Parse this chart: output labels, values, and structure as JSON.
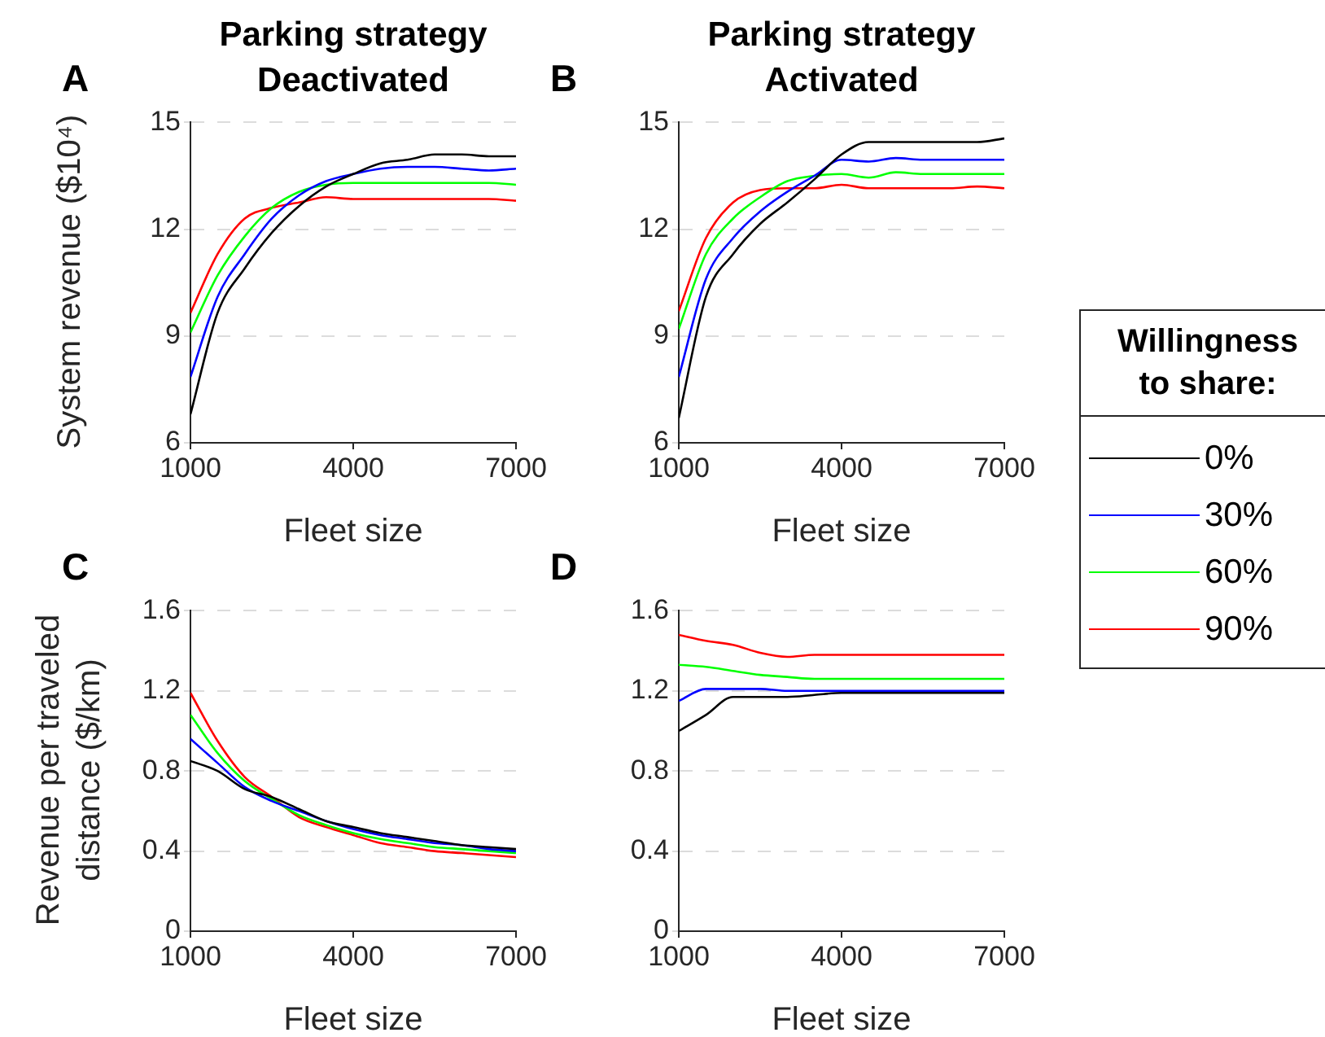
{
  "chart_data": [
    {
      "type": "line",
      "title": "Parking strategy",
      "subtitle": "Deactivated",
      "annotations": [
        "A"
      ],
      "ylabel": "System revenue ($10⁴)",
      "xlabel": "Fleet size",
      "x": [
        1000,
        1500,
        2000,
        2500,
        3000,
        3500,
        4000,
        4500,
        5000,
        5500,
        6000,
        6500,
        7000
      ],
      "xlim": [
        1000,
        7000
      ],
      "xticks": [
        1000,
        4000,
        7000
      ],
      "ylim": [
        6,
        15
      ],
      "yticks": [
        6,
        9,
        12,
        15
      ],
      "grid": "y",
      "series": [
        {
          "color": "#000000",
          "values": [
            6.8,
            9.65,
            10.9,
            11.9,
            12.65,
            13.2,
            13.55,
            13.85,
            13.95,
            14.1,
            14.1,
            14.05,
            14.05
          ]
        },
        {
          "color": "#0000ff",
          "values": [
            7.85,
            10.1,
            11.3,
            12.3,
            12.95,
            13.35,
            13.55,
            13.7,
            13.75,
            13.75,
            13.7,
            13.65,
            13.7
          ]
        },
        {
          "color": "#00ff00",
          "values": [
            9.1,
            10.7,
            11.8,
            12.6,
            13.05,
            13.25,
            13.3,
            13.3,
            13.3,
            13.3,
            13.3,
            13.3,
            13.25
          ]
        },
        {
          "color": "#ff0000",
          "values": [
            9.65,
            11.3,
            12.3,
            12.6,
            12.75,
            12.9,
            12.85,
            12.85,
            12.85,
            12.85,
            12.85,
            12.85,
            12.8
          ]
        }
      ]
    },
    {
      "type": "line",
      "title": "Parking strategy",
      "subtitle": "Activated",
      "annotations": [
        "B"
      ],
      "xlabel": "Fleet size",
      "x": [
        1000,
        1500,
        2000,
        2500,
        3000,
        3500,
        4000,
        4500,
        5000,
        5500,
        6000,
        6500,
        7000
      ],
      "xlim": [
        1000,
        7000
      ],
      "xticks": [
        1000,
        4000,
        7000
      ],
      "ylim": [
        6,
        15
      ],
      "yticks": [
        6,
        9,
        12,
        15
      ],
      "grid": "y",
      "legend": "right",
      "legend_title": "Willingness to share:",
      "series": [
        {
          "name": "0%",
          "color": "#000000",
          "values": [
            6.7,
            10.1,
            11.3,
            12.15,
            12.75,
            13.4,
            14.1,
            14.45,
            14.45,
            14.45,
            14.45,
            14.45,
            14.55
          ]
        },
        {
          "name": "30%",
          "color": "#0000ff",
          "values": [
            7.85,
            10.6,
            11.75,
            12.5,
            13.05,
            13.5,
            13.95,
            13.9,
            14.0,
            13.95,
            13.95,
            13.95,
            13.95
          ]
        },
        {
          "name": "60%",
          "color": "#00ff00",
          "values": [
            9.2,
            11.3,
            12.3,
            12.9,
            13.35,
            13.5,
            13.55,
            13.45,
            13.6,
            13.55,
            13.55,
            13.55,
            13.55
          ]
        },
        {
          "name": "90%",
          "color": "#ff0000",
          "values": [
            9.7,
            11.75,
            12.75,
            13.1,
            13.15,
            13.15,
            13.25,
            13.15,
            13.15,
            13.15,
            13.15,
            13.2,
            13.15
          ]
        }
      ]
    },
    {
      "type": "line",
      "annotations": [
        "C"
      ],
      "ylabel": "Revenue per traveled distance ($/km)",
      "xlabel": "Fleet size",
      "x": [
        1000,
        1500,
        2000,
        2500,
        3000,
        3500,
        4000,
        4500,
        5000,
        5500,
        6000,
        6500,
        7000
      ],
      "xlim": [
        1000,
        7000
      ],
      "xticks": [
        1000,
        4000,
        7000
      ],
      "ylim": [
        0,
        1.6
      ],
      "yticks": [
        0,
        0.4,
        0.8,
        1.2,
        1.6
      ],
      "grid": "y",
      "series": [
        {
          "color": "#000000",
          "values": [
            0.85,
            0.8,
            0.71,
            0.67,
            0.61,
            0.55,
            0.52,
            0.49,
            0.47,
            0.45,
            0.43,
            0.42,
            0.41
          ]
        },
        {
          "color": "#0000ff",
          "values": [
            0.96,
            0.84,
            0.72,
            0.65,
            0.6,
            0.55,
            0.51,
            0.48,
            0.46,
            0.44,
            0.43,
            0.41,
            0.4
          ]
        },
        {
          "color": "#00ff00",
          "values": [
            1.08,
            0.89,
            0.75,
            0.66,
            0.58,
            0.53,
            0.49,
            0.46,
            0.44,
            0.42,
            0.41,
            0.4,
            0.39
          ]
        },
        {
          "color": "#ff0000",
          "values": [
            1.19,
            0.95,
            0.77,
            0.67,
            0.57,
            0.52,
            0.48,
            0.44,
            0.42,
            0.4,
            0.39,
            0.38,
            0.37
          ]
        }
      ]
    },
    {
      "type": "line",
      "annotations": [
        "D"
      ],
      "xlabel": "Fleet size",
      "x": [
        1000,
        1500,
        2000,
        2500,
        3000,
        3500,
        4000,
        4500,
        5000,
        5500,
        6000,
        6500,
        7000
      ],
      "xlim": [
        1000,
        7000
      ],
      "xticks": [
        1000,
        4000,
        7000
      ],
      "ylim": [
        0,
        1.6
      ],
      "yticks": [
        0,
        0.4,
        0.8,
        1.2,
        1.6
      ],
      "grid": "y",
      "series": [
        {
          "color": "#000000",
          "values": [
            1.0,
            1.08,
            1.17,
            1.17,
            1.17,
            1.18,
            1.19,
            1.19,
            1.19,
            1.19,
            1.19,
            1.19,
            1.19
          ]
        },
        {
          "color": "#0000ff",
          "values": [
            1.15,
            1.21,
            1.21,
            1.21,
            1.2,
            1.2,
            1.2,
            1.2,
            1.2,
            1.2,
            1.2,
            1.2,
            1.2
          ]
        },
        {
          "color": "#00ff00",
          "values": [
            1.33,
            1.32,
            1.3,
            1.28,
            1.27,
            1.26,
            1.26,
            1.26,
            1.26,
            1.26,
            1.26,
            1.26,
            1.26
          ]
        },
        {
          "color": "#ff0000",
          "values": [
            1.48,
            1.45,
            1.43,
            1.39,
            1.37,
            1.38,
            1.38,
            1.38,
            1.38,
            1.38,
            1.38,
            1.38,
            1.38
          ]
        }
      ]
    }
  ]
}
